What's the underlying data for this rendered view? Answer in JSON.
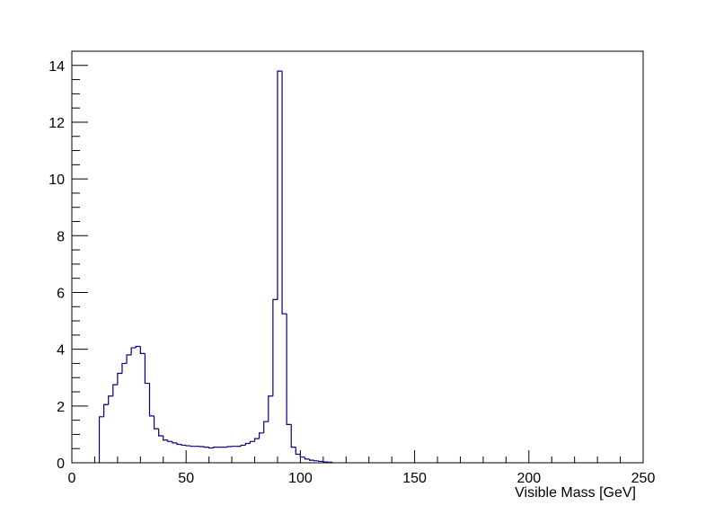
{
  "chart_data": {
    "type": "histogram",
    "title": "",
    "xlabel": "Visible Mass [GeV]",
    "ylabel": "",
    "xlim": [
      0,
      250
    ],
    "ylim": [
      0,
      14.5
    ],
    "grid": false,
    "line_color": "#000080",
    "bin_width": 2,
    "x_ticks": [
      "0",
      "50",
      "100",
      "150",
      "200",
      "250"
    ],
    "y_ticks": [
      "0",
      "2",
      "4",
      "6",
      "8",
      "10",
      "12",
      "14"
    ],
    "bins": [
      {
        "x0": 12,
        "y": 1.62
      },
      {
        "x0": 14,
        "y": 2.05
      },
      {
        "x0": 16,
        "y": 2.35
      },
      {
        "x0": 18,
        "y": 2.75
      },
      {
        "x0": 20,
        "y": 3.15
      },
      {
        "x0": 22,
        "y": 3.5
      },
      {
        "x0": 24,
        "y": 3.8
      },
      {
        "x0": 26,
        "y": 4.05
      },
      {
        "x0": 28,
        "y": 4.1
      },
      {
        "x0": 30,
        "y": 3.85
      },
      {
        "x0": 32,
        "y": 2.8
      },
      {
        "x0": 34,
        "y": 1.65
      },
      {
        "x0": 36,
        "y": 1.2
      },
      {
        "x0": 38,
        "y": 0.95
      },
      {
        "x0": 40,
        "y": 0.8
      },
      {
        "x0": 42,
        "y": 0.75
      },
      {
        "x0": 44,
        "y": 0.7
      },
      {
        "x0": 46,
        "y": 0.65
      },
      {
        "x0": 48,
        "y": 0.62
      },
      {
        "x0": 50,
        "y": 0.6
      },
      {
        "x0": 52,
        "y": 0.58
      },
      {
        "x0": 54,
        "y": 0.58
      },
      {
        "x0": 56,
        "y": 0.57
      },
      {
        "x0": 58,
        "y": 0.55
      },
      {
        "x0": 60,
        "y": 0.52
      },
      {
        "x0": 62,
        "y": 0.55
      },
      {
        "x0": 64,
        "y": 0.55
      },
      {
        "x0": 66,
        "y": 0.55
      },
      {
        "x0": 68,
        "y": 0.57
      },
      {
        "x0": 70,
        "y": 0.58
      },
      {
        "x0": 72,
        "y": 0.58
      },
      {
        "x0": 74,
        "y": 0.62
      },
      {
        "x0": 76,
        "y": 0.68
      },
      {
        "x0": 78,
        "y": 0.75
      },
      {
        "x0": 80,
        "y": 0.85
      },
      {
        "x0": 82,
        "y": 1.05
      },
      {
        "x0": 84,
        "y": 1.45
      },
      {
        "x0": 86,
        "y": 2.35
      },
      {
        "x0": 88,
        "y": 5.75
      },
      {
        "x0": 90,
        "y": 13.8
      },
      {
        "x0": 92,
        "y": 5.25
      },
      {
        "x0": 94,
        "y": 1.35
      },
      {
        "x0": 96,
        "y": 0.55
      },
      {
        "x0": 98,
        "y": 0.3
      },
      {
        "x0": 100,
        "y": 0.2
      },
      {
        "x0": 102,
        "y": 0.13
      },
      {
        "x0": 104,
        "y": 0.09
      },
      {
        "x0": 106,
        "y": 0.07
      },
      {
        "x0": 108,
        "y": 0.05
      },
      {
        "x0": 110,
        "y": 0.03
      },
      {
        "x0": 112,
        "y": 0.02
      }
    ]
  }
}
